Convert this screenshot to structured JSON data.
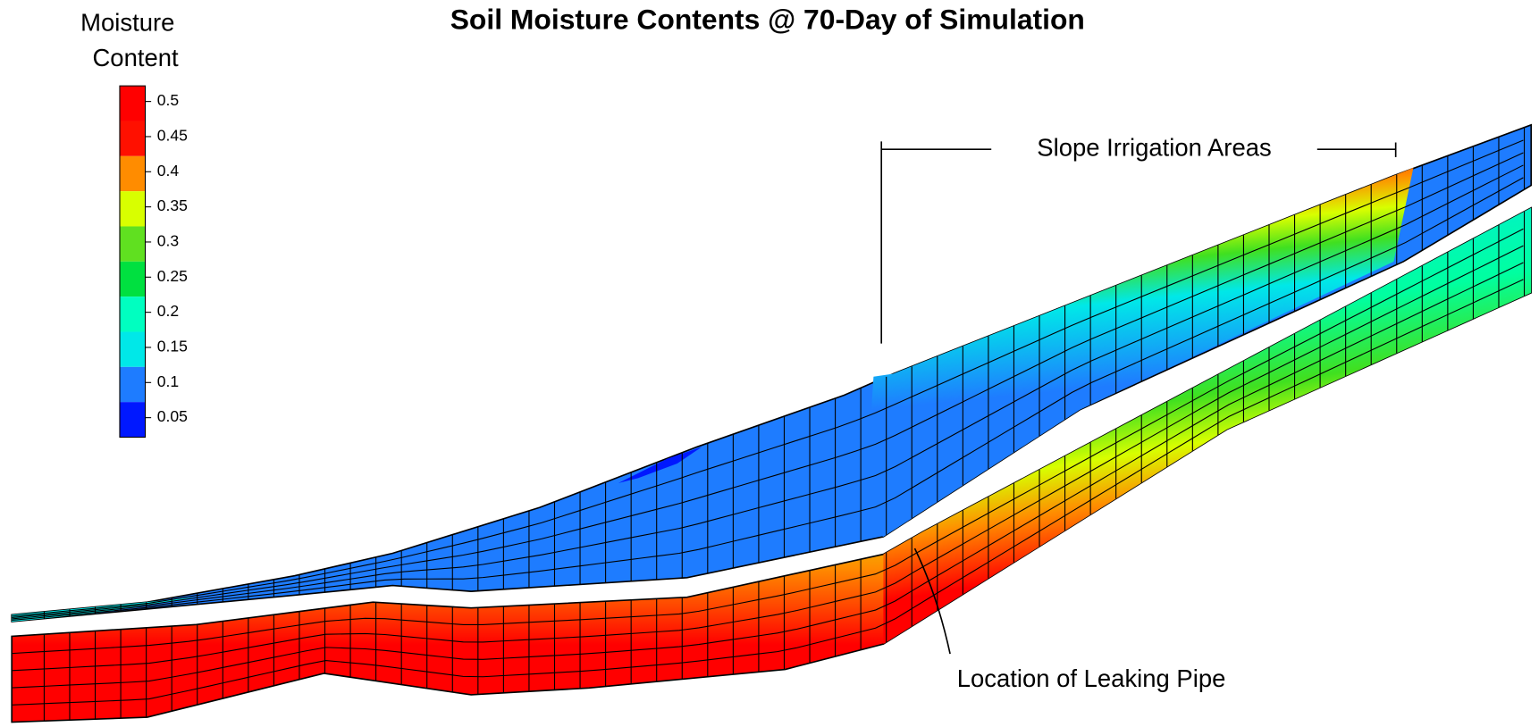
{
  "title": "Soil Moisture Contents @ 70-Day of Simulation",
  "legend": {
    "title": [
      "Moisture",
      "Content"
    ],
    "levels": [
      {
        "label": 0.5,
        "color": "#ff0000"
      },
      {
        "label": 0.45,
        "color": "#ff1000"
      },
      {
        "label": 0.4,
        "color": "#ff8c00"
      },
      {
        "label": 0.35,
        "color": "#d8ff00"
      },
      {
        "label": 0.3,
        "color": "#60e020"
      },
      {
        "label": 0.25,
        "color": "#00e040"
      },
      {
        "label": 0.2,
        "color": "#00ffc0"
      },
      {
        "label": 0.15,
        "color": "#00e8e8"
      },
      {
        "label": 0.1,
        "color": "#1e7cff"
      },
      {
        "label": 0.05,
        "color": "#0018ff"
      }
    ]
  },
  "annotations": {
    "irrigation": "Slope Irrigation Areas",
    "pipe": "Location of Leaking Pipe"
  }
}
